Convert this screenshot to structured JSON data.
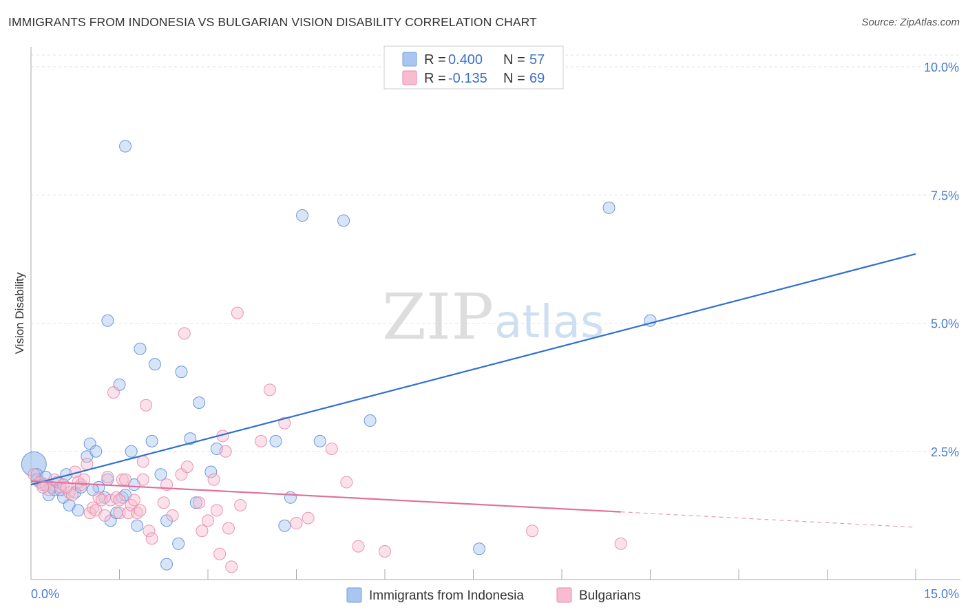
{
  "title": "IMMIGRANTS FROM INDONESIA VS BULGARIAN VISION DISABILITY CORRELATION CHART",
  "source": "Source: ZipAtlas.com",
  "watermark": {
    "zip": "ZIP",
    "atlas": "atlas"
  },
  "legend": {
    "r_label": "R = ",
    "n_label": "N = ",
    "items": [
      {
        "r": "0.400",
        "n": "57",
        "color": "#a8c6f0",
        "stroke": "#6f9de0"
      },
      {
        "r": "-0.135",
        "n": "69",
        "color": "#f7bcd0",
        "stroke": "#e88aa9"
      }
    ]
  },
  "chart_data": {
    "type": "scatter",
    "title": "IMMIGRANTS FROM INDONESIA VS BULGARIAN VISION DISABILITY CORRELATION CHART",
    "xlabel": "",
    "ylabel": "Vision Disability",
    "xlim": [
      0,
      15
    ],
    "ylim": [
      0,
      10.5
    ],
    "x_tick_labels": [
      "0.0%",
      "15.0%"
    ],
    "y_ticks": [
      2.5,
      5.0,
      7.5,
      10.0
    ],
    "y_tick_labels": [
      "2.5%",
      "5.0%",
      "7.5%",
      "10.0%"
    ],
    "series": [
      {
        "name": "Immigrants from Indonesia",
        "color": "#a8c6f0",
        "stroke": "#5b8ed8",
        "trend": {
          "x": [
            0,
            15
          ],
          "y": [
            1.85,
            6.35
          ],
          "color": "#2f6fd0",
          "dashed_from": null
        },
        "points": [
          [
            0.05,
            2.25
          ],
          [
            0.1,
            2.05
          ],
          [
            0.1,
            1.95
          ],
          [
            0.15,
            1.9
          ],
          [
            0.2,
            1.85
          ],
          [
            0.3,
            1.65
          ],
          [
            0.35,
            1.8
          ],
          [
            0.4,
            1.75
          ],
          [
            0.45,
            1.9
          ],
          [
            0.55,
            1.6
          ],
          [
            0.6,
            2.05
          ],
          [
            0.65,
            1.45
          ],
          [
            0.75,
            1.7
          ],
          [
            0.8,
            1.35
          ],
          [
            0.85,
            1.8
          ],
          [
            0.95,
            2.4
          ],
          [
            1.0,
            2.65
          ],
          [
            1.1,
            2.5
          ],
          [
            1.15,
            1.8
          ],
          [
            1.25,
            1.6
          ],
          [
            1.3,
            1.95
          ],
          [
            1.3,
            5.05
          ],
          [
            1.35,
            1.15
          ],
          [
            1.45,
            1.3
          ],
          [
            1.5,
            3.8
          ],
          [
            1.55,
            1.6
          ],
          [
            1.6,
            1.65
          ],
          [
            1.6,
            8.45
          ],
          [
            1.7,
            2.5
          ],
          [
            1.75,
            1.85
          ],
          [
            1.8,
            1.05
          ],
          [
            1.85,
            4.5
          ],
          [
            2.05,
            2.7
          ],
          [
            2.1,
            4.2
          ],
          [
            2.2,
            2.05
          ],
          [
            2.3,
            1.15
          ],
          [
            2.3,
            0.3
          ],
          [
            2.5,
            0.7
          ],
          [
            2.55,
            4.05
          ],
          [
            2.7,
            2.75
          ],
          [
            2.8,
            1.5
          ],
          [
            2.85,
            3.45
          ],
          [
            3.05,
            2.1
          ],
          [
            3.15,
            2.55
          ],
          [
            4.15,
            2.7
          ],
          [
            4.3,
            1.05
          ],
          [
            4.4,
            1.6
          ],
          [
            4.6,
            7.1
          ],
          [
            4.9,
            2.7
          ],
          [
            5.3,
            7.0
          ],
          [
            5.75,
            3.1
          ],
          [
            7.6,
            0.6
          ],
          [
            9.8,
            7.25
          ],
          [
            10.5,
            5.05
          ],
          [
            0.25,
            2.0
          ],
          [
            0.5,
            1.75
          ],
          [
            1.05,
            1.75
          ]
        ]
      },
      {
        "name": "Bulgarians",
        "color": "#f7bcd0",
        "stroke": "#e88aa9",
        "trend": {
          "x": [
            0,
            15
          ],
          "y": [
            1.92,
            1.02
          ],
          "color": "#e0709a",
          "dashed_from": 10.0
        },
        "points": [
          [
            0.05,
            2.05
          ],
          [
            0.15,
            1.9
          ],
          [
            0.25,
            1.85
          ],
          [
            0.3,
            1.75
          ],
          [
            0.4,
            1.95
          ],
          [
            0.5,
            1.8
          ],
          [
            0.55,
            1.85
          ],
          [
            0.65,
            1.7
          ],
          [
            0.7,
            1.65
          ],
          [
            0.75,
            2.1
          ],
          [
            0.8,
            1.9
          ],
          [
            0.85,
            1.85
          ],
          [
            0.9,
            1.95
          ],
          [
            0.95,
            2.25
          ],
          [
            1.0,
            1.3
          ],
          [
            1.05,
            1.4
          ],
          [
            1.1,
            1.35
          ],
          [
            1.15,
            1.6
          ],
          [
            1.2,
            1.55
          ],
          [
            1.3,
            2.0
          ],
          [
            1.35,
            1.55
          ],
          [
            1.4,
            3.65
          ],
          [
            1.45,
            1.6
          ],
          [
            1.5,
            1.3
          ],
          [
            1.5,
            1.55
          ],
          [
            1.55,
            1.95
          ],
          [
            1.6,
            1.95
          ],
          [
            1.65,
            1.3
          ],
          [
            1.7,
            1.45
          ],
          [
            1.75,
            1.55
          ],
          [
            1.8,
            1.3
          ],
          [
            1.85,
            1.35
          ],
          [
            1.9,
            2.3
          ],
          [
            1.9,
            1.95
          ],
          [
            1.95,
            3.4
          ],
          [
            2.0,
            0.95
          ],
          [
            2.05,
            0.8
          ],
          [
            2.25,
            1.5
          ],
          [
            2.3,
            1.85
          ],
          [
            2.4,
            1.25
          ],
          [
            2.55,
            2.05
          ],
          [
            2.6,
            4.8
          ],
          [
            2.65,
            2.2
          ],
          [
            2.85,
            1.5
          ],
          [
            2.9,
            0.95
          ],
          [
            3.0,
            1.15
          ],
          [
            3.1,
            1.95
          ],
          [
            3.15,
            1.35
          ],
          [
            3.2,
            0.5
          ],
          [
            3.25,
            2.8
          ],
          [
            3.3,
            2.5
          ],
          [
            3.35,
            1.0
          ],
          [
            3.4,
            0.25
          ],
          [
            3.5,
            5.2
          ],
          [
            3.55,
            1.45
          ],
          [
            3.9,
            2.7
          ],
          [
            4.05,
            3.7
          ],
          [
            4.3,
            3.05
          ],
          [
            4.5,
            1.1
          ],
          [
            4.7,
            1.2
          ],
          [
            5.1,
            2.55
          ],
          [
            5.35,
            1.9
          ],
          [
            5.55,
            0.65
          ],
          [
            6.0,
            0.55
          ],
          [
            8.5,
            0.95
          ],
          [
            10.0,
            0.7
          ],
          [
            0.2,
            1.8
          ],
          [
            0.6,
            1.8
          ],
          [
            1.25,
            1.25
          ]
        ]
      }
    ],
    "grid": true,
    "legend_position": "top-center"
  }
}
